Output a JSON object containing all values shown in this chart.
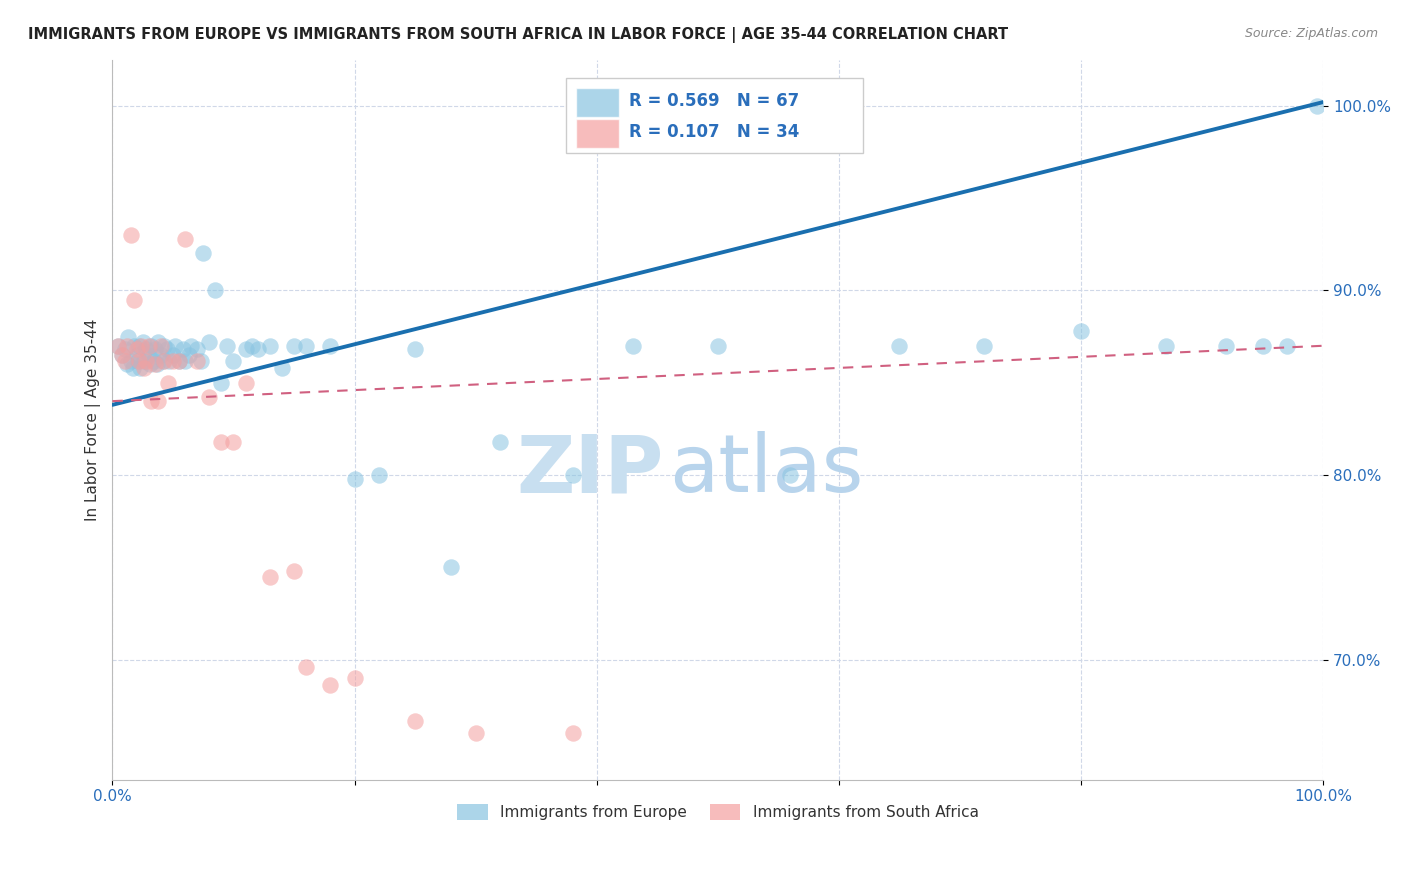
{
  "title": "IMMIGRANTS FROM EUROPE VS IMMIGRANTS FROM SOUTH AFRICA IN LABOR FORCE | AGE 35-44 CORRELATION CHART",
  "source": "Source: ZipAtlas.com",
  "ylabel": "In Labor Force | Age 35-44",
  "xlim": [
    0.0,
    1.0
  ],
  "ylim": [
    0.635,
    1.025
  ],
  "yticks": [
    0.7,
    0.8,
    0.9,
    1.0
  ],
  "ytick_labels": [
    "70.0%",
    "80.0%",
    "90.0%",
    "100.0%"
  ],
  "xtick_labels": [
    "0.0%",
    "",
    "",
    "",
    "",
    "100.0%"
  ],
  "blue_R": 0.569,
  "blue_N": 67,
  "pink_R": 0.107,
  "pink_N": 34,
  "blue_color": "#89c4e1",
  "pink_color": "#f4a0a0",
  "trend_blue": "#1a6faf",
  "trend_pink": "#d06080",
  "watermark": "ZIPatlas",
  "watermark_color": "#daeaf5",
  "blue_scatter_x": [
    0.005,
    0.008,
    0.01,
    0.012,
    0.013,
    0.015,
    0.017,
    0.018,
    0.02,
    0.021,
    0.022,
    0.023,
    0.025,
    0.026,
    0.028,
    0.03,
    0.031,
    0.032,
    0.034,
    0.035,
    0.037,
    0.038,
    0.04,
    0.042,
    0.043,
    0.045,
    0.047,
    0.05,
    0.052,
    0.055,
    0.058,
    0.06,
    0.063,
    0.065,
    0.07,
    0.073,
    0.075,
    0.08,
    0.085,
    0.09,
    0.095,
    0.1,
    0.11,
    0.115,
    0.12,
    0.13,
    0.14,
    0.15,
    0.16,
    0.18,
    0.2,
    0.22,
    0.25,
    0.28,
    0.32,
    0.38,
    0.43,
    0.5,
    0.56,
    0.65,
    0.72,
    0.8,
    0.87,
    0.92,
    0.95,
    0.97,
    0.995
  ],
  "blue_scatter_y": [
    0.87,
    0.865,
    0.868,
    0.86,
    0.875,
    0.862,
    0.858,
    0.87,
    0.865,
    0.862,
    0.87,
    0.858,
    0.872,
    0.862,
    0.868,
    0.865,
    0.86,
    0.87,
    0.862,
    0.868,
    0.86,
    0.872,
    0.865,
    0.862,
    0.87,
    0.868,
    0.862,
    0.865,
    0.87,
    0.862,
    0.868,
    0.862,
    0.865,
    0.87,
    0.868,
    0.862,
    0.92,
    0.872,
    0.9,
    0.85,
    0.87,
    0.862,
    0.868,
    0.87,
    0.868,
    0.87,
    0.858,
    0.87,
    0.87,
    0.87,
    0.798,
    0.8,
    0.868,
    0.75,
    0.818,
    0.8,
    0.87,
    0.87,
    0.8,
    0.87,
    0.87,
    0.878,
    0.87,
    0.87,
    0.87,
    0.87,
    1.0
  ],
  "pink_scatter_x": [
    0.005,
    0.008,
    0.01,
    0.012,
    0.015,
    0.018,
    0.02,
    0.022,
    0.024,
    0.026,
    0.028,
    0.03,
    0.032,
    0.035,
    0.038,
    0.04,
    0.043,
    0.046,
    0.05,
    0.055,
    0.06,
    0.07,
    0.08,
    0.09,
    0.1,
    0.11,
    0.13,
    0.15,
    0.16,
    0.18,
    0.2,
    0.25,
    0.3,
    0.38
  ],
  "pink_scatter_y": [
    0.87,
    0.865,
    0.862,
    0.87,
    0.93,
    0.895,
    0.868,
    0.862,
    0.87,
    0.858,
    0.862,
    0.87,
    0.84,
    0.86,
    0.84,
    0.87,
    0.862,
    0.85,
    0.862,
    0.862,
    0.928,
    0.862,
    0.842,
    0.818,
    0.818,
    0.85,
    0.745,
    0.748,
    0.696,
    0.686,
    0.69,
    0.667,
    0.66,
    0.66
  ],
  "blue_trend_x0": 0.0,
  "blue_trend_y0": 0.838,
  "blue_trend_x1": 1.0,
  "blue_trend_y1": 1.002,
  "pink_trend_x0": 0.0,
  "pink_trend_y0": 0.84,
  "pink_trend_x1": 1.0,
  "pink_trend_y1": 0.87
}
